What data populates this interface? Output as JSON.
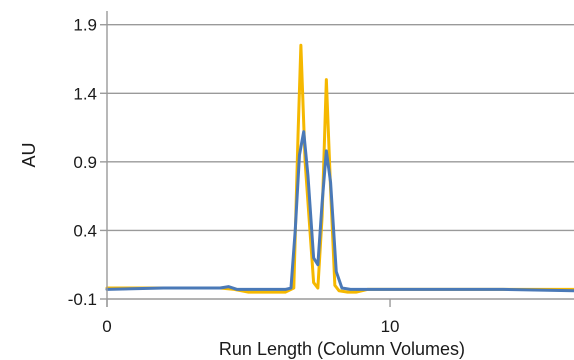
{
  "chart_data": {
    "type": "line",
    "xlabel": "Run Length (Column Volumes)",
    "ylabel": "AU",
    "xlim": [
      0,
      16.5
    ],
    "ylim": [
      -0.1,
      2.0
    ],
    "x_ticks": [
      0,
      10
    ],
    "x_tick_labels": [
      "0",
      "10"
    ],
    "y_ticks": [
      -0.1,
      0.4,
      0.9,
      1.4,
      1.9
    ],
    "y_tick_labels": [
      "-0.1",
      "0.4",
      "0.9",
      "1.4",
      "1.9"
    ],
    "grid": "horizontal",
    "legend": "none",
    "series": [
      {
        "color": "#f5b800",
        "x": [
          0.0,
          2.0,
          4.0,
          4.5,
          5.0,
          5.8,
          6.3,
          6.6,
          6.75,
          6.85,
          7.0,
          7.3,
          7.45,
          7.6,
          7.75,
          7.9,
          8.05,
          8.2,
          8.5,
          8.8,
          9.2,
          10.0,
          12.0,
          14.0,
          16.5
        ],
        "y": [
          -0.02,
          -0.02,
          -0.02,
          -0.03,
          -0.05,
          -0.05,
          -0.05,
          -0.02,
          1.1,
          1.75,
          0.9,
          0.02,
          -0.02,
          0.5,
          1.5,
          0.7,
          0.0,
          -0.04,
          -0.05,
          -0.05,
          -0.03,
          -0.03,
          -0.03,
          -0.03,
          -0.03
        ]
      },
      {
        "color": "#4a79b7",
        "x": [
          0.0,
          2.0,
          4.0,
          4.3,
          4.6,
          5.0,
          5.8,
          6.3,
          6.5,
          6.65,
          6.8,
          6.95,
          7.1,
          7.3,
          7.45,
          7.6,
          7.75,
          7.9,
          8.1,
          8.3,
          8.6,
          9.2,
          10.0,
          12.0,
          14.0,
          16.5
        ],
        "y": [
          -0.03,
          -0.02,
          -0.02,
          -0.01,
          -0.03,
          -0.03,
          -0.03,
          -0.03,
          -0.02,
          0.4,
          0.95,
          1.12,
          0.8,
          0.2,
          0.15,
          0.6,
          0.98,
          0.75,
          0.1,
          -0.02,
          -0.03,
          -0.03,
          -0.03,
          -0.03,
          -0.03,
          -0.04
        ]
      }
    ]
  }
}
